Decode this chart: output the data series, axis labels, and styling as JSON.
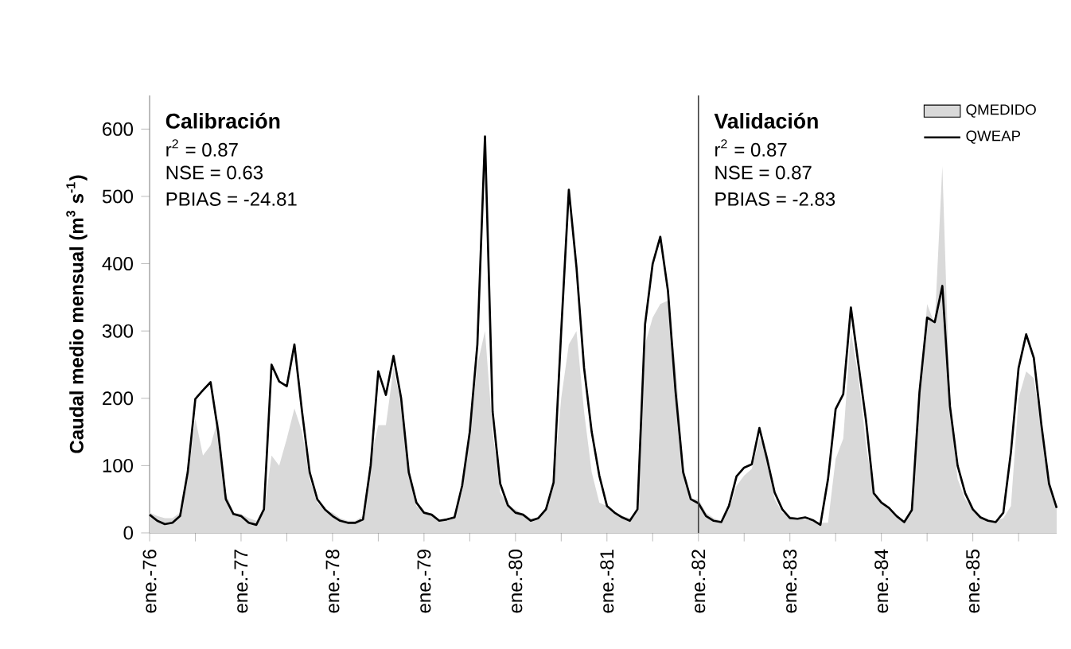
{
  "chart_data": {
    "type": "area",
    "ylabel": "Caudal medio mensual (m$^{3}$ s$^{-1}$)",
    "x": [
      "1976-01",
      "1976-02",
      "1976-03",
      "1976-04",
      "1976-05",
      "1976-06",
      "1976-07",
      "1976-08",
      "1976-09",
      "1976-10",
      "1976-11",
      "1976-12",
      "1977-01",
      "1977-02",
      "1977-03",
      "1977-04",
      "1977-05",
      "1977-06",
      "1977-07",
      "1977-08",
      "1977-09",
      "1977-10",
      "1977-11",
      "1977-12",
      "1978-01",
      "1978-02",
      "1978-03",
      "1978-04",
      "1978-05",
      "1978-06",
      "1978-07",
      "1978-08",
      "1978-09",
      "1978-10",
      "1978-11",
      "1978-12",
      "1979-01",
      "1979-02",
      "1979-03",
      "1979-04",
      "1979-05",
      "1979-06",
      "1979-07",
      "1979-08",
      "1979-09",
      "1979-10",
      "1979-11",
      "1979-12",
      "1980-01",
      "1980-02",
      "1980-03",
      "1980-04",
      "1980-05",
      "1980-06",
      "1980-07",
      "1980-08",
      "1980-09",
      "1980-10",
      "1980-11",
      "1980-12",
      "1981-01",
      "1981-02",
      "1981-03",
      "1981-04",
      "1981-05",
      "1981-06",
      "1981-07",
      "1981-08",
      "1981-09",
      "1981-10",
      "1981-11",
      "1981-12",
      "1982-01",
      "1982-02",
      "1982-03",
      "1982-04",
      "1982-05",
      "1982-06",
      "1982-07",
      "1982-08",
      "1982-09",
      "1982-10",
      "1982-11",
      "1982-12",
      "1983-01",
      "1983-02",
      "1983-03",
      "1983-04",
      "1983-05",
      "1983-06",
      "1983-07",
      "1983-08",
      "1983-09",
      "1983-10",
      "1983-11",
      "1983-12",
      "1984-01",
      "1984-02",
      "1984-03",
      "1984-04",
      "1984-05",
      "1984-06",
      "1984-07",
      "1984-08",
      "1984-09",
      "1984-10",
      "1984-11",
      "1984-12",
      "1985-01",
      "1985-02",
      "1985-03",
      "1985-04",
      "1985-05",
      "1985-06",
      "1985-07",
      "1985-08",
      "1985-09",
      "1985-10",
      "1985-11",
      "1985-12"
    ],
    "series": [
      {
        "name": "QMEDIDO",
        "color": "#d9d9d9",
        "values": [
          30,
          25,
          22,
          22,
          30,
          80,
          170,
          115,
          130,
          170,
          60,
          30,
          28,
          22,
          18,
          30,
          115,
          100,
          140,
          185,
          150,
          80,
          45,
          33,
          30,
          22,
          18,
          18,
          25,
          110,
          160,
          160,
          245,
          190,
          85,
          40,
          30,
          25,
          20,
          20,
          25,
          60,
          150,
          250,
          300,
          150,
          60,
          40,
          35,
          28,
          22,
          22,
          35,
          70,
          200,
          280,
          300,
          180,
          90,
          45,
          40,
          30,
          25,
          22,
          35,
          280,
          320,
          340,
          345,
          250,
          100,
          50,
          50,
          30,
          22,
          18,
          35,
          70,
          85,
          95,
          140,
          120,
          50,
          30,
          25,
          22,
          20,
          18,
          15,
          15,
          110,
          140,
          300,
          230,
          130,
          55,
          45,
          35,
          25,
          18,
          30,
          200,
          340,
          310,
          545,
          190,
          80,
          50,
          35,
          25,
          20,
          18,
          22,
          40,
          200,
          240,
          230,
          150,
          70,
          40
        ]
      },
      {
        "name": "QWEAP",
        "type": "line",
        "color": "#000000",
        "values": [
          27,
          18,
          13,
          15,
          25,
          90,
          199,
          212,
          224,
          150,
          50,
          28,
          25,
          15,
          12,
          35,
          250,
          225,
          218,
          280,
          180,
          90,
          50,
          35,
          25,
          18,
          15,
          15,
          20,
          100,
          240,
          205,
          263,
          200,
          90,
          45,
          30,
          27,
          18,
          20,
          23,
          70,
          150,
          280,
          589,
          180,
          73,
          41,
          30,
          27,
          18,
          22,
          35,
          75,
          300,
          510,
          395,
          245,
          150,
          85,
          40,
          30,
          23,
          18,
          35,
          310,
          400,
          440,
          360,
          210,
          90,
          50,
          44,
          25,
          18,
          16,
          40,
          84,
          97,
          102,
          156,
          110,
          60,
          35,
          22,
          21,
          23,
          19,
          12,
          80,
          184,
          206,
          335,
          250,
          166,
          59,
          45,
          37,
          25,
          16,
          34,
          209,
          320,
          313,
          367,
          188,
          100,
          59,
          35,
          23,
          18,
          16,
          30,
          120,
          245,
          295,
          260,
          160,
          73,
          37
        ]
      }
    ],
    "xlim": [
      "1976-01",
      "1985-12"
    ],
    "xticks": [
      {
        "value": "1976-01",
        "label": "ene.-76"
      },
      {
        "value": "1976-07",
        "label": null
      },
      {
        "value": "1977-01",
        "label": "ene.-77"
      },
      {
        "value": "1977-07",
        "label": null
      },
      {
        "value": "1978-01",
        "label": "ene.-78"
      },
      {
        "value": "1978-07",
        "label": null
      },
      {
        "value": "1979-01",
        "label": "ene.-79"
      },
      {
        "value": "1979-07",
        "label": null
      },
      {
        "value": "1980-01",
        "label": "ene.-80"
      },
      {
        "value": "1980-07",
        "label": null
      },
      {
        "value": "1981-01",
        "label": "ene.-81"
      },
      {
        "value": "1981-07",
        "label": null
      },
      {
        "value": "1982-01",
        "label": "ene.-82"
      },
      {
        "value": "1982-07",
        "label": null
      },
      {
        "value": "1983-01",
        "label": "ene.-83"
      },
      {
        "value": "1983-07",
        "label": null
      },
      {
        "value": "1984-01",
        "label": "ene.-84"
      },
      {
        "value": "1984-07",
        "label": null
      },
      {
        "value": "1985-01",
        "label": "ene.-85"
      },
      {
        "value": "1985-07",
        "label": null
      }
    ],
    "ylim": [
      0,
      650
    ],
    "yticks": [
      0,
      100,
      200,
      300,
      400,
      500,
      600
    ],
    "ref_lines": [
      {
        "axis": "x",
        "value": "1982-01",
        "color": "#404040"
      }
    ],
    "annotations": [
      "Calibración",
      "r$^{2}$ = 0.87",
      "NSE = 0.63",
      "PBIAS = -24.81",
      "Validación",
      "r$^{2}$ = 0.87",
      "NSE = 0.87",
      "PBIAS = -2.83"
    ],
    "legend": "top right",
    "grid": false,
    "marker": "none"
  }
}
